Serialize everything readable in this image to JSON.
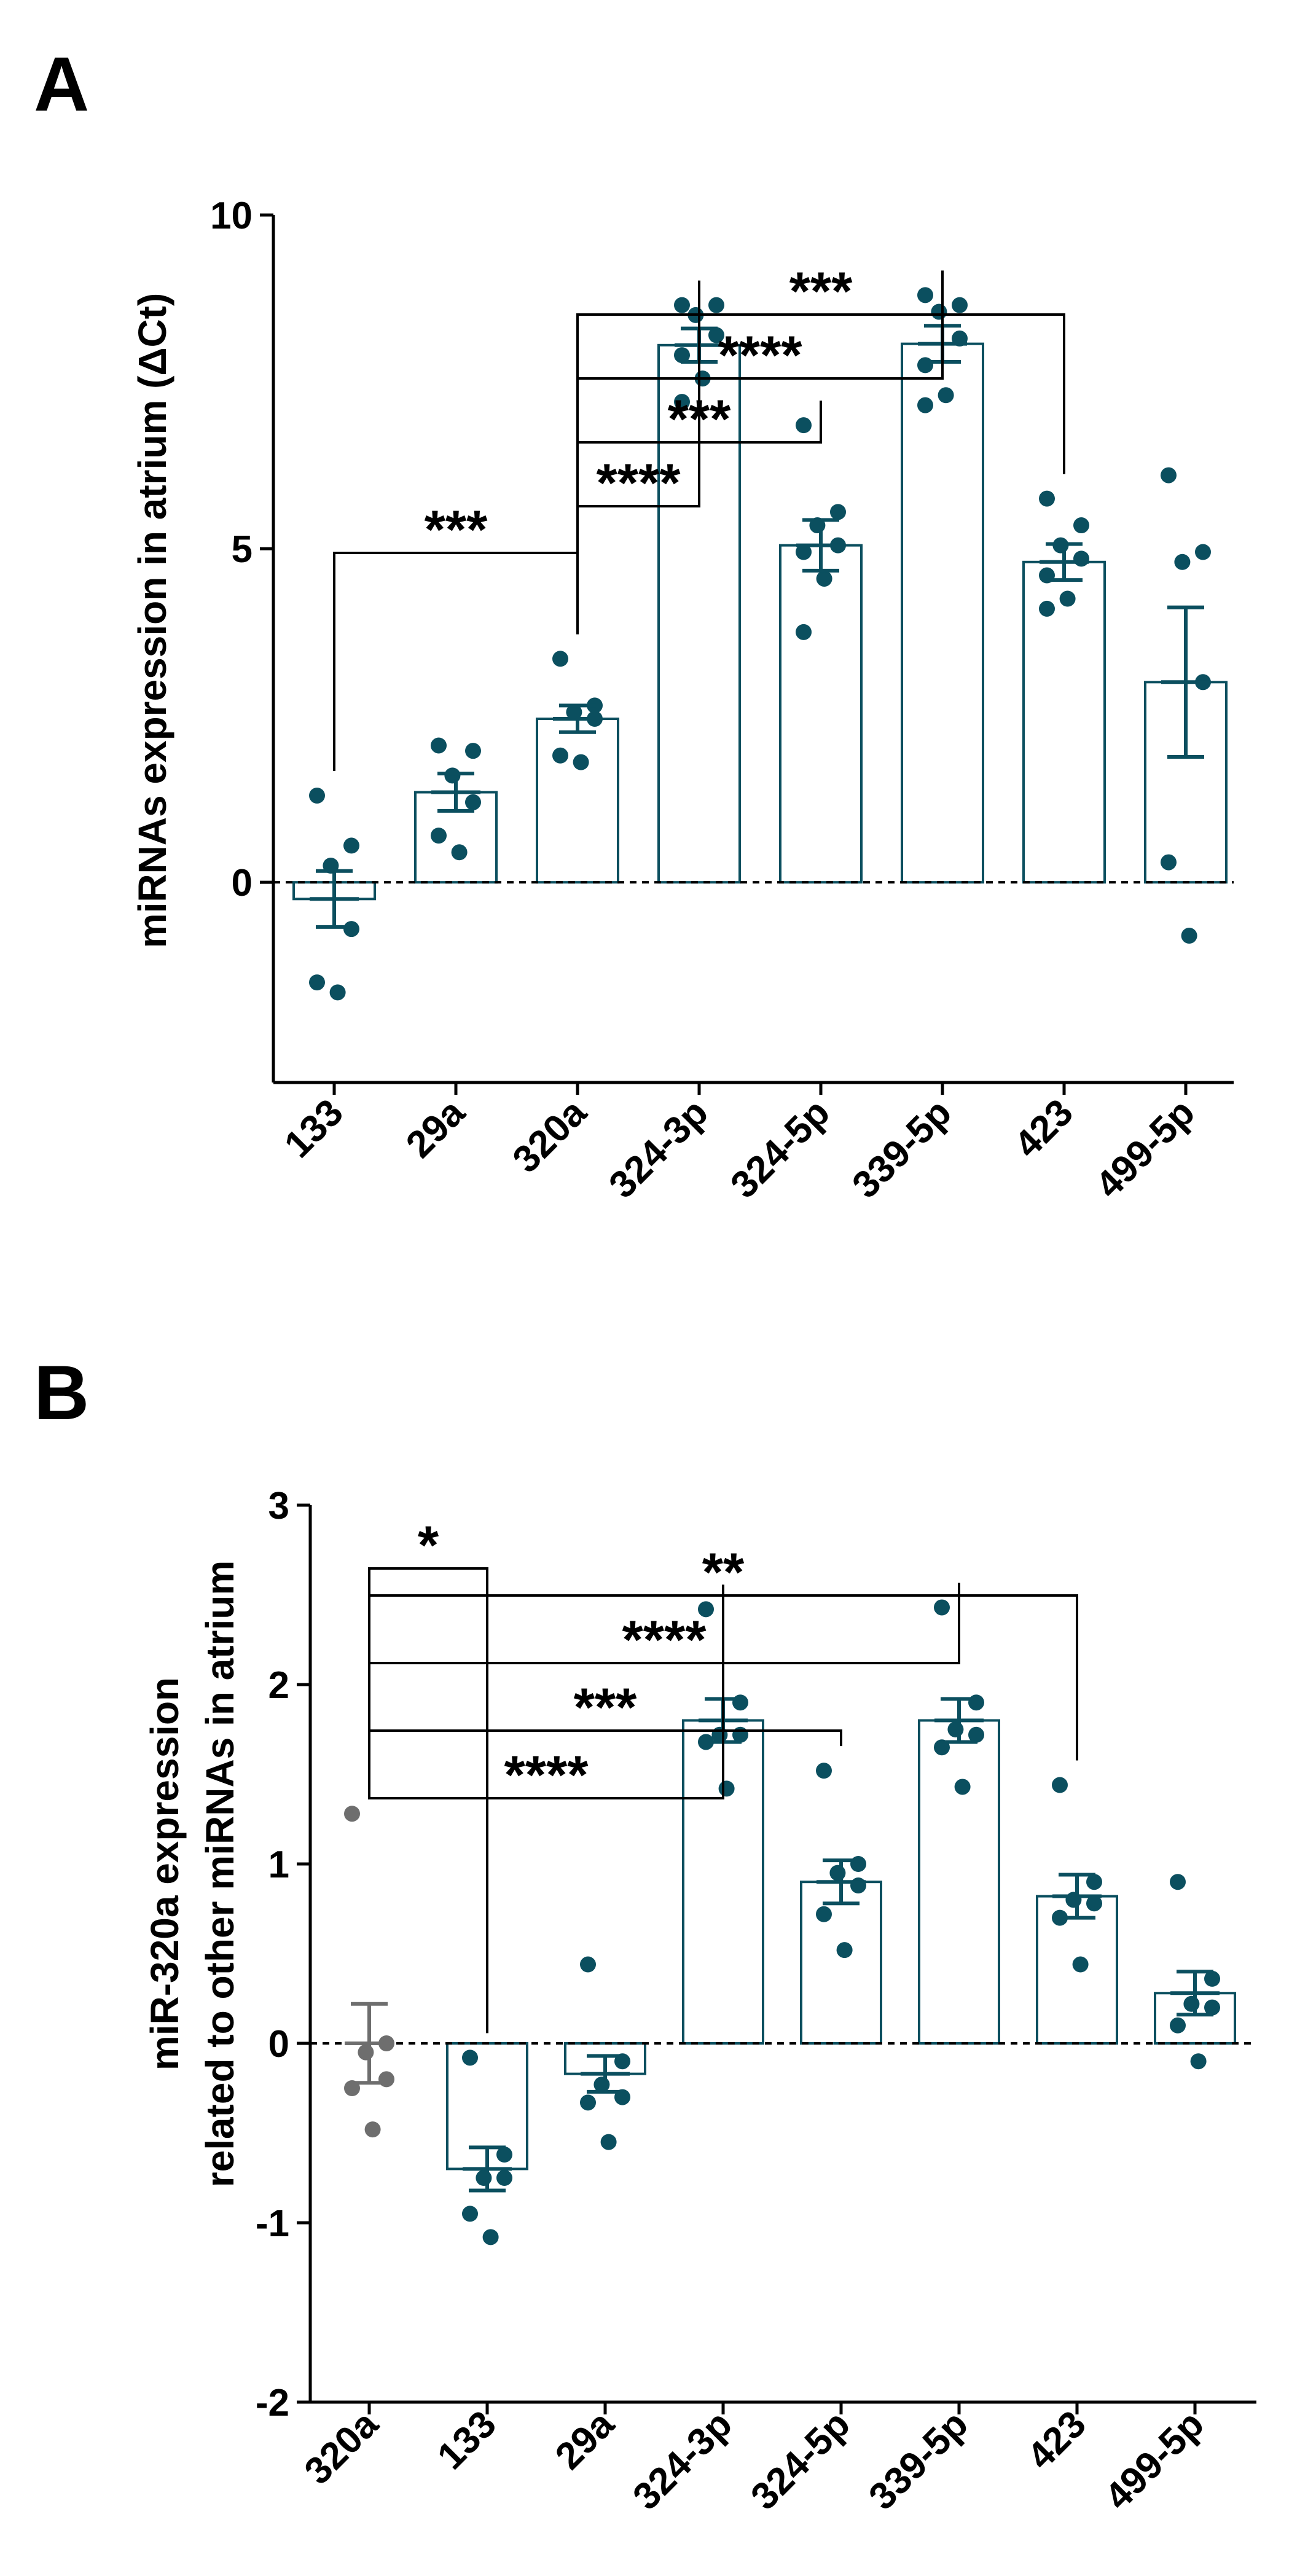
{
  "colors": {
    "teal": "#0b4f5f",
    "gray": "#6e6e6e",
    "black": "#000000"
  },
  "chart_data": [
    {
      "panel_label": "A",
      "type": "bar",
      "ylabel": "miRNAs expression in atrium (ΔCt)",
      "ylim": [
        -3,
        10
      ],
      "yticks": [
        0,
        5,
        10
      ],
      "categories": [
        "133",
        "29a",
        "320a",
        "324-3p",
        "324-5p",
        "339-5p",
        "423",
        "499-5p"
      ],
      "means": [
        -0.25,
        1.35,
        2.45,
        8.05,
        5.05,
        8.07,
        4.8,
        3.0
      ],
      "sem": [
        0.42,
        0.28,
        0.2,
        0.25,
        0.38,
        0.27,
        0.27,
        1.12
      ],
      "points": [
        [
          1.3,
          0.55,
          0.25,
          -0.7,
          -1.5,
          -1.65
        ],
        [
          2.05,
          1.97,
          1.6,
          1.2,
          0.7,
          0.45
        ],
        [
          3.35,
          2.65,
          2.55,
          2.45,
          1.9,
          1.8
        ],
        [
          8.65,
          8.65,
          8.5,
          8.2,
          7.9,
          7.55,
          7.2
        ],
        [
          6.85,
          5.55,
          5.35,
          5.05,
          4.95,
          4.55,
          3.75
        ],
        [
          8.8,
          8.65,
          8.55,
          8.15,
          7.75,
          7.3,
          7.15
        ],
        [
          5.75,
          5.35,
          5.05,
          4.85,
          4.6,
          4.25,
          4.1
        ],
        [
          6.1,
          4.95,
          4.8,
          3.0,
          0.3,
          -0.8
        ]
      ],
      "point_colors": [
        "teal",
        "teal",
        "teal",
        "teal",
        "teal",
        "teal",
        "teal",
        "teal"
      ],
      "bar_colors": [
        "teal",
        "teal",
        "teal",
        "teal",
        "teal",
        "teal",
        "teal",
        "teal"
      ],
      "reference_line": 0,
      "significance": [
        {
          "from": 0,
          "to": 2,
          "label": "***"
        },
        {
          "from": 2,
          "to": 3,
          "label": "****"
        },
        {
          "from": 2,
          "to": 4,
          "label": "***"
        },
        {
          "from": 2,
          "to": 5,
          "label": "****"
        },
        {
          "from": 2,
          "to": 6,
          "label": "***"
        }
      ]
    },
    {
      "panel_label": "B",
      "type": "bar",
      "ylabel": "miR-320a expression",
      "ylabel2": "related to other miRNAs in atrium",
      "ylim": [
        -2,
        3
      ],
      "yticks": [
        -2,
        -1,
        0,
        1,
        2,
        3
      ],
      "categories": [
        "320a",
        "133",
        "29a",
        "324-3p",
        "324-5p",
        "339-5p",
        "423",
        "499-5p"
      ],
      "means": [
        0.0,
        -0.7,
        -0.17,
        1.8,
        0.9,
        1.8,
        0.82,
        0.28
      ],
      "sem": [
        0.22,
        0.12,
        0.1,
        0.12,
        0.12,
        0.12,
        0.12,
        0.12
      ],
      "points": [
        [
          1.28,
          0.0,
          -0.05,
          -0.2,
          -0.25,
          -0.48
        ],
        [
          -0.08,
          -0.62,
          -0.75,
          -0.75,
          -0.95,
          -1.08
        ],
        [
          0.44,
          -0.1,
          -0.23,
          -0.3,
          -0.33,
          -0.55
        ],
        [
          2.42,
          1.9,
          1.72,
          1.72,
          1.68,
          1.42
        ],
        [
          1.52,
          1.0,
          0.95,
          0.88,
          0.72,
          0.52
        ],
        [
          2.43,
          1.9,
          1.75,
          1.72,
          1.65,
          1.43
        ],
        [
          1.44,
          0.9,
          0.8,
          0.78,
          0.7,
          0.44
        ],
        [
          0.9,
          0.36,
          0.22,
          0.2,
          0.1,
          -0.1
        ]
      ],
      "point_colors": [
        "gray",
        "teal",
        "teal",
        "teal",
        "teal",
        "teal",
        "teal",
        "teal"
      ],
      "bar_colors": [
        "gray",
        "teal",
        "teal",
        "teal",
        "teal",
        "teal",
        "teal",
        "teal"
      ],
      "reference_line": 0,
      "significance": [
        {
          "from": 0,
          "to": 1,
          "label": "*"
        },
        {
          "from": 0,
          "to": 3,
          "label": "****"
        },
        {
          "from": 0,
          "to": 4,
          "label": "***"
        },
        {
          "from": 0,
          "to": 5,
          "label": "****"
        },
        {
          "from": 0,
          "to": 6,
          "label": "**"
        }
      ]
    }
  ]
}
